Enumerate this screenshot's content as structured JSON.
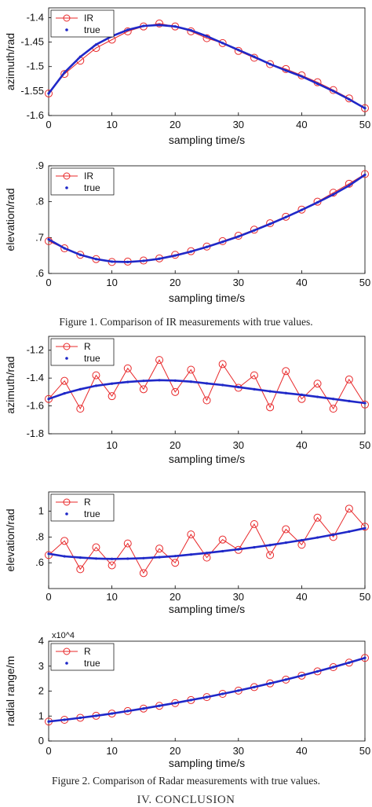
{
  "captions": {
    "figure1": "Figure 1. Comparison of IR measurements with true values.",
    "figure2": "Figure 2. Comparison of Radar measurements with true values."
  },
  "section_heading": "IV.  CONCLUSION",
  "colors": {
    "measured": "#e8282a",
    "true": "#1f28c8"
  },
  "chart_data": [
    {
      "type": "line",
      "title": "",
      "xlabel": "sampling time/s",
      "ylabel": "azimuth/rad",
      "xlim": [
        0,
        50
      ],
      "ylim": [
        -1.6,
        -1.38
      ],
      "xticks": [
        0,
        10,
        20,
        30,
        40,
        50
      ],
      "yticks": [
        -1.4,
        -1.45,
        -1.5,
        -1.55,
        -1.6
      ],
      "legend": {
        "placement": "top-left"
      },
      "series": [
        {
          "name": "IR",
          "style": "red line with circle markers",
          "x": [
            0,
            2.5,
            5,
            7.5,
            10,
            12.5,
            15,
            17.5,
            20,
            22.5,
            25,
            27.5,
            30,
            32.5,
            35,
            37.5,
            40,
            42.5,
            45,
            47.5,
            50
          ],
          "y": [
            -1.555,
            -1.515,
            -1.488,
            -1.462,
            -1.445,
            -1.428,
            -1.418,
            -1.412,
            -1.418,
            -1.428,
            -1.442,
            -1.452,
            -1.468,
            -1.482,
            -1.495,
            -1.505,
            -1.518,
            -1.532,
            -1.548,
            -1.565,
            -1.585
          ]
        },
        {
          "name": "true",
          "style": "blue dots",
          "x": [
            0,
            2.5,
            5,
            7.5,
            10,
            12.5,
            15,
            17.5,
            20,
            22.5,
            25,
            27.5,
            30,
            32.5,
            35,
            37.5,
            40,
            42.5,
            45,
            47.5,
            50
          ],
          "y": [
            -1.555,
            -1.512,
            -1.48,
            -1.455,
            -1.438,
            -1.425,
            -1.417,
            -1.415,
            -1.418,
            -1.426,
            -1.438,
            -1.452,
            -1.466,
            -1.48,
            -1.495,
            -1.508,
            -1.52,
            -1.535,
            -1.55,
            -1.567,
            -1.585
          ]
        }
      ]
    },
    {
      "type": "line",
      "title": "",
      "xlabel": "sampling time/s",
      "ylabel": "elevation/rad",
      "xlim": [
        0,
        50
      ],
      "ylim": [
        0.6,
        0.9
      ],
      "xticks": [
        0,
        10,
        20,
        30,
        40,
        50
      ],
      "yticks": [
        0.9,
        0.8,
        0.7,
        0.6
      ],
      "legend": {
        "placement": "top-left"
      },
      "series": [
        {
          "name": "IR",
          "style": "red line with circle markers",
          "x": [
            0,
            2.5,
            5,
            7.5,
            10,
            12.5,
            15,
            17.5,
            20,
            22.5,
            25,
            27.5,
            30,
            32.5,
            35,
            37.5,
            40,
            42.5,
            45,
            47.5,
            50
          ],
          "y": [
            0.69,
            0.67,
            0.652,
            0.64,
            0.632,
            0.633,
            0.636,
            0.642,
            0.652,
            0.662,
            0.675,
            0.69,
            0.705,
            0.722,
            0.74,
            0.758,
            0.778,
            0.8,
            0.825,
            0.85,
            0.877
          ]
        },
        {
          "name": "true",
          "style": "blue dots",
          "x": [
            0,
            2.5,
            5,
            7.5,
            10,
            12.5,
            15,
            17.5,
            20,
            22.5,
            25,
            27.5,
            30,
            32.5,
            35,
            37.5,
            40,
            42.5,
            45,
            47.5,
            50
          ],
          "y": [
            0.695,
            0.67,
            0.652,
            0.64,
            0.633,
            0.632,
            0.635,
            0.641,
            0.65,
            0.661,
            0.674,
            0.688,
            0.703,
            0.72,
            0.738,
            0.757,
            0.777,
            0.798,
            0.82,
            0.845,
            0.875
          ]
        }
      ]
    },
    {
      "type": "line",
      "title": "",
      "xlabel": "sampling time/s",
      "ylabel": "azimuth/rad",
      "xlim": [
        0,
        50
      ],
      "ylim": [
        -1.8,
        -1.1
      ],
      "xticks": [
        10,
        20,
        30,
        40,
        50
      ],
      "yticks": [
        -1.2,
        -1.4,
        -1.6,
        -1.8
      ],
      "legend": {
        "placement": "top-left"
      },
      "series": [
        {
          "name": "R",
          "style": "red line with circle markers",
          "x": [
            0,
            2.5,
            5,
            7.5,
            10,
            12.5,
            15,
            17.5,
            20,
            22.5,
            25,
            27.5,
            30,
            32.5,
            35,
            37.5,
            40,
            42.5,
            45,
            47.5,
            50
          ],
          "y": [
            -1.55,
            -1.42,
            -1.62,
            -1.38,
            -1.53,
            -1.33,
            -1.48,
            -1.27,
            -1.5,
            -1.34,
            -1.56,
            -1.3,
            -1.47,
            -1.38,
            -1.61,
            -1.35,
            -1.55,
            -1.44,
            -1.62,
            -1.41,
            -1.59
          ]
        },
        {
          "name": "true",
          "style": "blue dots",
          "x": [
            0,
            2.5,
            5,
            7.5,
            10,
            12.5,
            15,
            17.5,
            20,
            22.5,
            25,
            27.5,
            30,
            32.5,
            35,
            37.5,
            40,
            42.5,
            45,
            47.5,
            50
          ],
          "y": [
            -1.55,
            -1.51,
            -1.48,
            -1.455,
            -1.44,
            -1.428,
            -1.42,
            -1.415,
            -1.418,
            -1.426,
            -1.438,
            -1.45,
            -1.465,
            -1.48,
            -1.495,
            -1.508,
            -1.52,
            -1.535,
            -1.55,
            -1.565,
            -1.58
          ]
        }
      ]
    },
    {
      "type": "line",
      "title": "",
      "xlabel": "sampling time/s",
      "ylabel": "elevation/rad",
      "xlim": [
        0,
        50
      ],
      "ylim": [
        0.4,
        1.15
      ],
      "xticks": [
        0,
        10,
        20,
        30,
        40,
        50
      ],
      "yticks": [
        1,
        0.8,
        0.6
      ],
      "legend": {
        "placement": "top-left"
      },
      "series": [
        {
          "name": "R",
          "style": "red line with circle markers",
          "x": [
            0,
            2.5,
            5,
            7.5,
            10,
            12.5,
            15,
            17.5,
            20,
            22.5,
            25,
            27.5,
            30,
            32.5,
            35,
            37.5,
            40,
            42.5,
            45,
            47.5,
            50
          ],
          "y": [
            0.66,
            0.77,
            0.55,
            0.72,
            0.58,
            0.75,
            0.52,
            0.71,
            0.6,
            0.82,
            0.64,
            0.78,
            0.7,
            0.9,
            0.66,
            0.86,
            0.74,
            0.95,
            0.8,
            1.02,
            0.88
          ]
        },
        {
          "name": "true",
          "style": "blue dots",
          "x": [
            0,
            2.5,
            5,
            7.5,
            10,
            12.5,
            15,
            17.5,
            20,
            22.5,
            25,
            27.5,
            30,
            32.5,
            35,
            37.5,
            40,
            42.5,
            45,
            47.5,
            50
          ],
          "y": [
            0.67,
            0.65,
            0.64,
            0.633,
            0.63,
            0.632,
            0.636,
            0.643,
            0.652,
            0.664,
            0.676,
            0.69,
            0.705,
            0.72,
            0.737,
            0.756,
            0.775,
            0.796,
            0.818,
            0.842,
            0.868
          ]
        }
      ]
    },
    {
      "type": "line",
      "title": "",
      "xlabel": "sampling time/s",
      "ylabel": "radial range/m",
      "y_multiplier": "x10^4",
      "xlim": [
        0,
        50
      ],
      "ylim": [
        0,
        4
      ],
      "xticks": [
        0,
        10,
        20,
        30,
        40,
        50
      ],
      "yticks": [
        4,
        3,
        2,
        1,
        0
      ],
      "legend": {
        "placement": "top-left"
      },
      "series": [
        {
          "name": "R",
          "style": "red line with circle markers",
          "x": [
            0,
            2.5,
            5,
            7.5,
            10,
            12.5,
            15,
            17.5,
            20,
            22.5,
            25,
            27.5,
            30,
            32.5,
            35,
            37.5,
            40,
            42.5,
            45,
            47.5,
            50
          ],
          "y": [
            0.78,
            0.85,
            0.93,
            1.01,
            1.1,
            1.2,
            1.3,
            1.41,
            1.52,
            1.64,
            1.76,
            1.89,
            2.02,
            2.16,
            2.31,
            2.46,
            2.62,
            2.79,
            2.96,
            3.14,
            3.33
          ]
        },
        {
          "name": "true",
          "style": "blue dots",
          "x": [
            0,
            2.5,
            5,
            7.5,
            10,
            12.5,
            15,
            17.5,
            20,
            22.5,
            25,
            27.5,
            30,
            32.5,
            35,
            37.5,
            40,
            42.5,
            45,
            47.5,
            50
          ],
          "y": [
            0.78,
            0.85,
            0.93,
            1.01,
            1.1,
            1.2,
            1.3,
            1.41,
            1.52,
            1.64,
            1.76,
            1.89,
            2.02,
            2.16,
            2.31,
            2.46,
            2.62,
            2.79,
            2.96,
            3.14,
            3.33
          ]
        }
      ]
    }
  ]
}
